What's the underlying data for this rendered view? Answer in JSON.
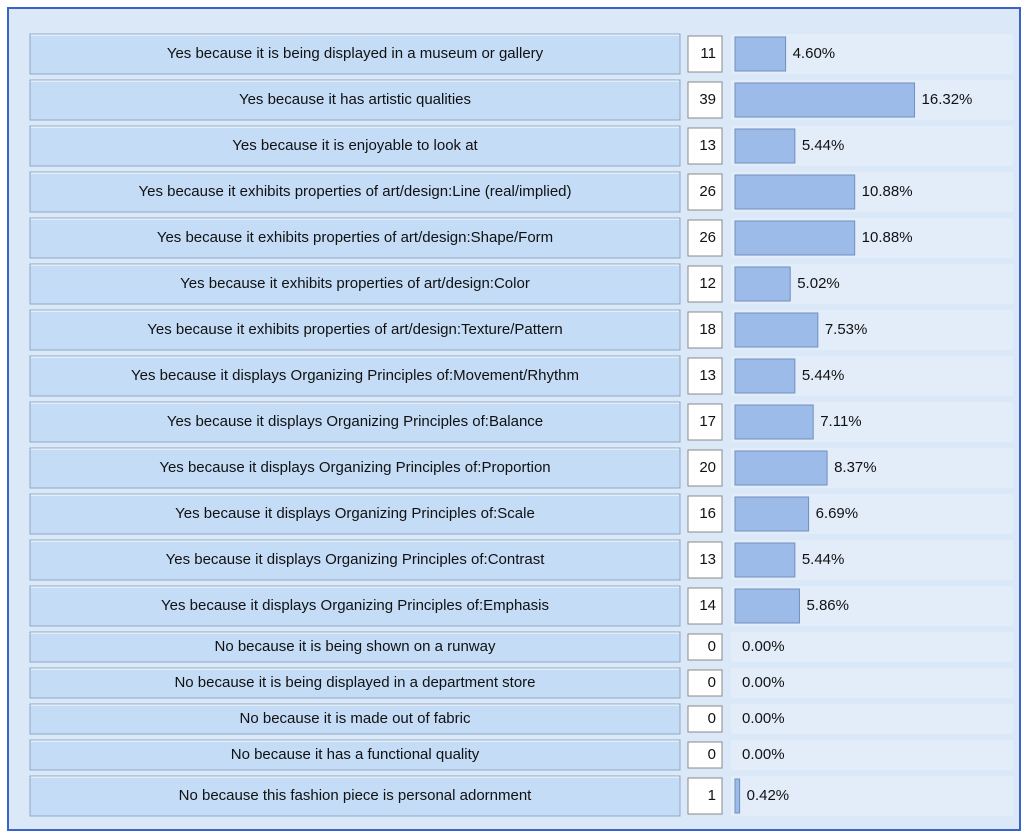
{
  "chart_data": {
    "type": "hbar",
    "categories": [
      "Yes because it is being displayed in a museum or gallery",
      "Yes because it has artistic qualities",
      "Yes because it is enjoyable to look at",
      "Yes because it exhibits properties of art/design:Line (real/implied)",
      "Yes because it exhibits properties of art/design:Shape/Form",
      "Yes because it exhibits properties of art/design:Color",
      "Yes because it exhibits properties of art/design:Texture/Pattern",
      "Yes because it displays Organizing Principles of:Movement/Rhythm",
      "Yes because it displays Organizing Principles of:Balance",
      "Yes because it displays Organizing Principles of:Proportion",
      "Yes because it displays Organizing Principles of:Scale",
      "Yes because it displays Organizing Principles of:Contrast",
      "Yes because it displays Organizing Principles of:Emphasis",
      "No because it is being shown on a runway",
      "No because it is being displayed in a department store",
      "No because it is made out of fabric",
      "No because it has a functional quality",
      "No because this fashion piece is personal adornment"
    ],
    "counts": [
      11,
      39,
      13,
      26,
      26,
      12,
      18,
      13,
      17,
      20,
      16,
      13,
      14,
      0,
      0,
      0,
      0,
      1
    ],
    "values": [
      4.6,
      16.32,
      5.44,
      10.88,
      10.88,
      5.02,
      7.53,
      5.44,
      7.11,
      8.37,
      6.69,
      5.44,
      5.86,
      0,
      0,
      0,
      0,
      0.42
    ],
    "value_labels": [
      "4.60%",
      "16.32%",
      "5.44%",
      "10.88%",
      "10.88%",
      "5.02%",
      "7.53%",
      "5.44%",
      "7.11%",
      "8.37%",
      "6.69%",
      "5.44%",
      "5.86%",
      "0.00%",
      "0.00%",
      "0.00%",
      "0.00%",
      "0.42%"
    ],
    "color": "#9dbbe8"
  }
}
